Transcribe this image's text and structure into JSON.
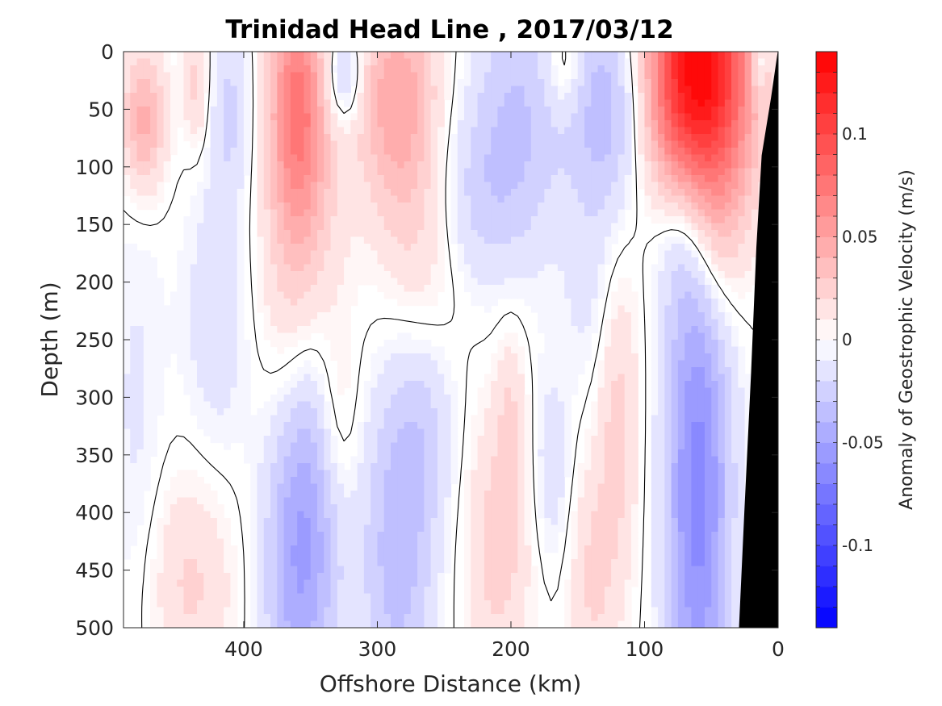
{
  "chart_data": {
    "type": "heatmap",
    "title": "Trinidad Head Line , 2017/03/12",
    "xlabel": "Offshore Distance (km)",
    "ylabel": "Depth (m)",
    "colorbar_label": "Anomaly of Geostrophic Velocity (m/s)",
    "xlim": [
      490,
      0
    ],
    "ylim": [
      0,
      500
    ],
    "x_reversed": true,
    "y_reversed": true,
    "x_ticks": [
      400,
      300,
      200,
      100,
      0
    ],
    "x_tick_labels": [
      "400",
      "300",
      "200",
      "100",
      "0"
    ],
    "y_ticks": [
      0,
      50,
      100,
      150,
      200,
      250,
      300,
      350,
      400,
      450,
      500
    ],
    "y_tick_labels": [
      "0",
      "50",
      "100",
      "150",
      "200",
      "250",
      "300",
      "350",
      "400",
      "450",
      "500"
    ],
    "colorbar_ticks": [
      0.1,
      0.05,
      0,
      -0.05,
      -0.1
    ],
    "colorbar_tick_labels": [
      "0.1",
      "0.05",
      "0",
      "-0.05",
      "-0.1"
    ],
    "colorbar_range": [
      -0.14,
      0.14
    ],
    "colorbar_levels": 28,
    "colormap": {
      "negative": "#0000ff",
      "zero": "#ffffff",
      "positive": "#ff0000"
    },
    "zero_contour_color": "#000000",
    "topography_color": "#000000",
    "bathymetry": [
      {
        "x": 0,
        "depth": 0
      },
      {
        "x": 5,
        "depth": 40
      },
      {
        "x": 12,
        "depth": 90
      },
      {
        "x": 16,
        "depth": 170
      },
      {
        "x": 20,
        "depth": 280
      },
      {
        "x": 25,
        "depth": 400
      },
      {
        "x": 29,
        "depth": 500
      }
    ],
    "features": [
      {
        "x": 475,
        "depth": 60,
        "sx": 12,
        "sy": 45,
        "value": 0.045
      },
      {
        "x": 435,
        "depth": 30,
        "sx": 7,
        "sy": 40,
        "value": 0.025
      },
      {
        "x": 410,
        "depth": 50,
        "sx": 12,
        "sy": 55,
        "value": -0.022
      },
      {
        "x": 420,
        "depth": 230,
        "sx": 18,
        "sy": 90,
        "value": -0.018
      },
      {
        "x": 480,
        "depth": 330,
        "sx": 15,
        "sy": 160,
        "value": -0.012
      },
      {
        "x": 440,
        "depth": 460,
        "sx": 25,
        "sy": 70,
        "value": 0.022
      },
      {
        "x": 360,
        "depth": 40,
        "sx": 15,
        "sy": 75,
        "value": 0.065
      },
      {
        "x": 355,
        "depth": 200,
        "sx": 22,
        "sy": 110,
        "value": 0.035
      },
      {
        "x": 330,
        "depth": 320,
        "sx": 12,
        "sy": 60,
        "value": 0.02
      },
      {
        "x": 325,
        "depth": 20,
        "sx": 10,
        "sy": 30,
        "value": -0.035
      },
      {
        "x": 358,
        "depth": 440,
        "sx": 20,
        "sy": 110,
        "value": -0.05
      },
      {
        "x": 345,
        "depth": 300,
        "sx": 18,
        "sy": 90,
        "value": -0.025
      },
      {
        "x": 285,
        "depth": 40,
        "sx": 22,
        "sy": 70,
        "value": 0.048
      },
      {
        "x": 265,
        "depth": 170,
        "sx": 22,
        "sy": 70,
        "value": 0.022
      },
      {
        "x": 235,
        "depth": 130,
        "sx": 25,
        "sy": 60,
        "value": -0.02
      },
      {
        "x": 285,
        "depth": 440,
        "sx": 20,
        "sy": 110,
        "value": -0.035
      },
      {
        "x": 265,
        "depth": 320,
        "sx": 18,
        "sy": 70,
        "value": -0.018
      },
      {
        "x": 195,
        "depth": 60,
        "sx": 25,
        "sy": 90,
        "value": -0.03
      },
      {
        "x": 160,
        "depth": 10,
        "sx": 10,
        "sy": 30,
        "value": 0.02
      },
      {
        "x": 210,
        "depth": 430,
        "sx": 18,
        "sy": 90,
        "value": 0.025
      },
      {
        "x": 200,
        "depth": 310,
        "sx": 8,
        "sy": 60,
        "value": 0.015
      },
      {
        "x": 170,
        "depth": 360,
        "sx": 10,
        "sy": 60,
        "value": -0.018
      },
      {
        "x": 125,
        "depth": 50,
        "sx": 22,
        "sy": 75,
        "value": -0.042
      },
      {
        "x": 140,
        "depth": 220,
        "sx": 15,
        "sy": 60,
        "value": -0.012
      },
      {
        "x": 120,
        "depth": 320,
        "sx": 12,
        "sy": 110,
        "value": 0.025
      },
      {
        "x": 140,
        "depth": 460,
        "sx": 12,
        "sy": 70,
        "value": 0.02
      },
      {
        "x": 60,
        "depth": 20,
        "sx": 28,
        "sy": 85,
        "value": 0.145
      },
      {
        "x": 45,
        "depth": 160,
        "sx": 15,
        "sy": 60,
        "value": 0.02
      },
      {
        "x": 60,
        "depth": 380,
        "sx": 18,
        "sy": 170,
        "value": -0.065
      },
      {
        "x": 75,
        "depth": 160,
        "sx": 15,
        "sy": 50,
        "value": -0.018
      },
      {
        "x": 15,
        "depth": 10,
        "sx": 4,
        "sy": 20,
        "value": -0.03
      }
    ]
  }
}
